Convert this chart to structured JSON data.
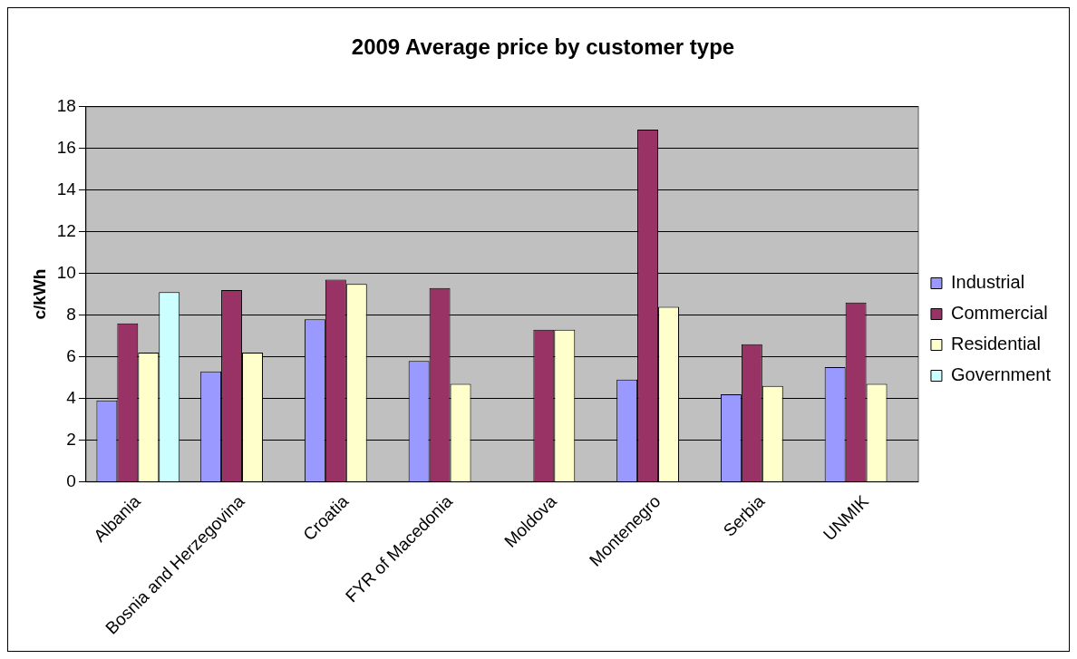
{
  "chart_data": {
    "type": "bar",
    "title": "2009 Average price by customer type",
    "ylabel": "c/kWh",
    "categories": [
      "Albania",
      "Bosnia and Herzegovina",
      "Croatia",
      "FYR of Macedonia",
      "Moldova",
      "Montenegro",
      "Serbia",
      "UNMIK"
    ],
    "series": [
      {
        "name": "Industrial",
        "color": "#9999ff",
        "values": [
          3.9,
          5.3,
          7.8,
          5.8,
          null,
          4.9,
          4.2,
          5.5
        ]
      },
      {
        "name": "Commercial",
        "color": "#993366",
        "values": [
          7.6,
          9.2,
          9.7,
          9.3,
          7.3,
          16.9,
          6.6,
          8.6
        ]
      },
      {
        "name": "Residential",
        "color": "#ffffcc",
        "values": [
          6.2,
          6.2,
          9.5,
          4.7,
          7.3,
          8.4,
          4.6,
          4.7
        ]
      },
      {
        "name": "Government",
        "color": "#ccffff",
        "values": [
          9.1,
          null,
          null,
          null,
          null,
          null,
          null,
          null
        ]
      }
    ],
    "ylim": [
      0,
      18
    ],
    "yticks": [
      0,
      2,
      4,
      6,
      8,
      10,
      12,
      14,
      16,
      18
    ],
    "grid": "y",
    "legend": "right"
  }
}
